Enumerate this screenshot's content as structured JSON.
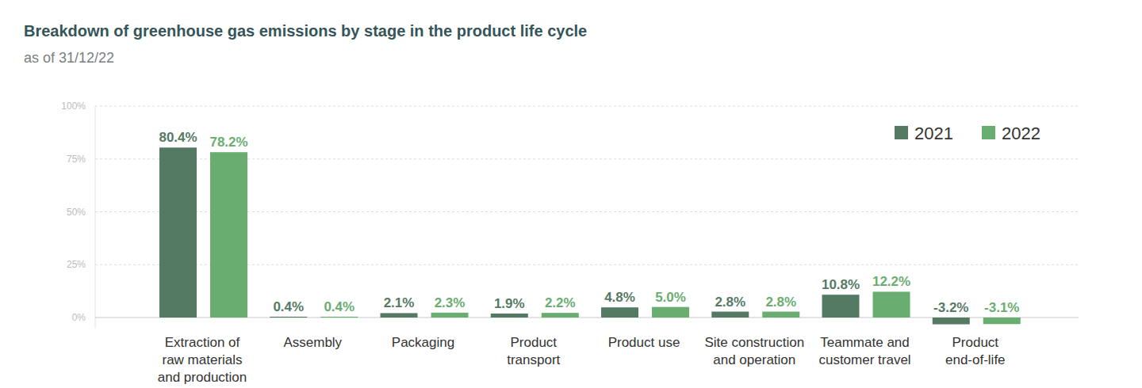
{
  "chart_data": {
    "type": "bar",
    "title": "Breakdown of greenhouse gas emissions by stage in the product life cycle",
    "subtitle": "as of 31/12/22",
    "categories": [
      "Extraction of\nraw materials\nand production",
      "Assembly",
      "Packaging",
      "Product\ntransport",
      "Product use",
      "Site construction\nand operation",
      "Teammate and\ncustomer travel",
      "Product\nend-of-life"
    ],
    "series": [
      {
        "name": "2021",
        "color": "#557a64",
        "values": [
          80.4,
          0.4,
          2.1,
          1.9,
          4.8,
          2.8,
          10.8,
          -3.2
        ],
        "value_labels": [
          "80.4%",
          "0.4%",
          "2.1%",
          "1.9%",
          "4.8%",
          "2.8%",
          "10.8%",
          "-3.2%"
        ]
      },
      {
        "name": "2022",
        "color": "#6aad71",
        "values": [
          78.2,
          0.4,
          2.3,
          2.2,
          5.0,
          2.8,
          12.2,
          -3.1
        ],
        "value_labels": [
          "78.2%",
          "0.4%",
          "2.3%",
          "2.2%",
          "5.0%",
          "2.8%",
          "12.2%",
          "-3.1%"
        ]
      }
    ],
    "ylim": [
      -5,
      100
    ],
    "yticks": [
      {
        "value": 0,
        "label": "0%"
      },
      {
        "value": 25,
        "label": "25%"
      },
      {
        "value": 50,
        "label": "50%"
      },
      {
        "value": 75,
        "label": "75%"
      },
      {
        "value": 100,
        "label": "100%"
      }
    ],
    "grid": true,
    "legend": "top-right",
    "data_labels": true
  }
}
